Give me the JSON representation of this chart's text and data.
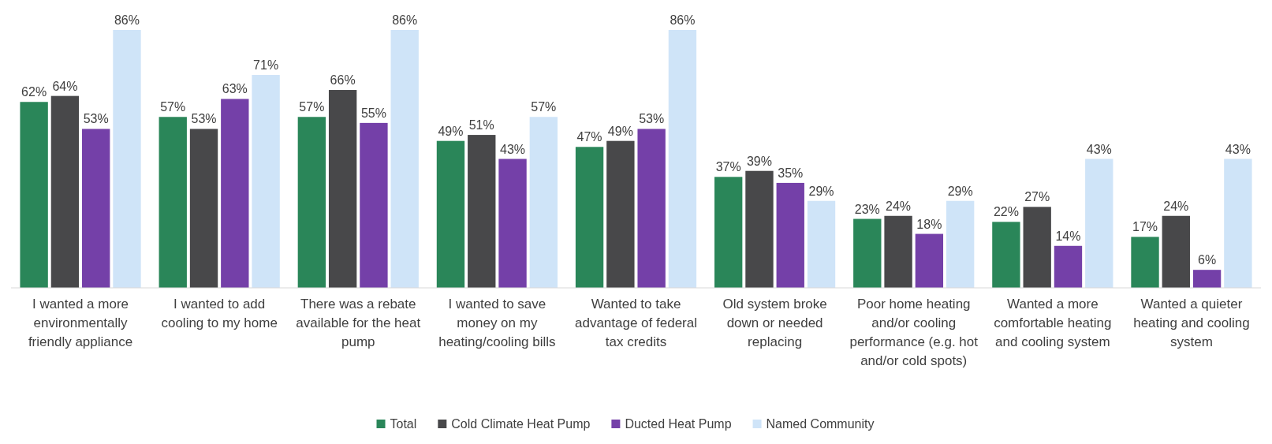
{
  "chart_data": {
    "type": "bar",
    "categories": [
      "I wanted a more environmentally friendly appliance",
      "I wanted to add cooling to my home",
      "There was a rebate available for the heat pump",
      "I wanted to save money on my heating/cooling bills",
      "Wanted to take advantage of federal tax credits",
      "Old system broke down or needed replacing",
      "Poor home heating and/or cooling performance (e.g. hot and/or cold spots)",
      "Wanted a more comfortable heating and cooling system",
      "Wanted a quieter heating and cooling system"
    ],
    "series": [
      {
        "name": "Total",
        "color": "#2a8659",
        "values": [
          62,
          57,
          57,
          49,
          47,
          37,
          23,
          22,
          17
        ],
        "value_labels": [
          "62%",
          "57%",
          "57%",
          "49%",
          "47%",
          "37%",
          "23%",
          "22%",
          "17%"
        ]
      },
      {
        "name": "Cold Climate Heat Pump",
        "color": "#48484a",
        "values": [
          64,
          53,
          66,
          51,
          49,
          39,
          24,
          27,
          24
        ],
        "value_labels": [
          "64%",
          "53%",
          "66%",
          "51%",
          "49%",
          "39%",
          "24%",
          "27%",
          "24%"
        ]
      },
      {
        "name": "Ducted Heat Pump",
        "color": "#7440a8",
        "values": [
          53,
          63,
          55,
          43,
          53,
          35,
          18,
          14,
          6
        ],
        "value_labels": [
          "53%",
          "63%",
          "55%",
          "43%",
          "53%",
          "35%",
          "18%",
          "14%",
          "6%"
        ]
      },
      {
        "name": "Named Community",
        "color": "#cfe4f8",
        "values": [
          86,
          71,
          86,
          57,
          86,
          29,
          29,
          43,
          43
        ],
        "value_labels": [
          "86%",
          "71%",
          "86%",
          "57%",
          "86%",
          "29%",
          "29%",
          "43%",
          "43%"
        ]
      }
    ],
    "ylim": [
      0,
      86
    ],
    "tick_labels": "x",
    "legend": "bottom",
    "grid": false
  }
}
